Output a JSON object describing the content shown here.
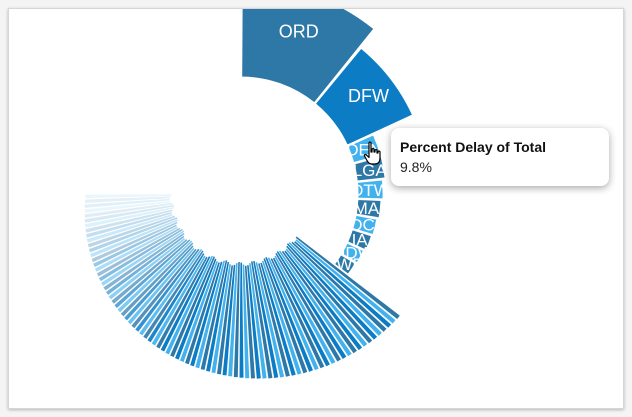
{
  "chart_data": {
    "type": "pie",
    "variant": "radial-sunburst",
    "categories": [
      "ORD",
      "DFW",
      "DEN",
      "LGA",
      "DTW",
      "MA.",
      "DC.",
      "IA",
      "MDW",
      "EWR"
    ],
    "values": [
      14.5,
      9.8,
      3.4,
      3.4,
      3.1,
      2.9,
      2.7,
      2.6,
      2.4,
      2.3
    ],
    "tail_count": 80,
    "tail_total": 52.9,
    "colors": [
      "#2e78a8",
      "#0c7cc5",
      "#42b2ee",
      "#2e78a8",
      "#42b2ee",
      "#2e78a8",
      "#42b2ee",
      "#2e78a8",
      "#42b2ee",
      "#2e78a8"
    ],
    "palette": [
      "#2e78a8",
      "#42b2ee",
      "#0c7cc5"
    ]
  },
  "tooltip": {
    "title": "Percent Delay of Total",
    "value": "9.8%"
  }
}
